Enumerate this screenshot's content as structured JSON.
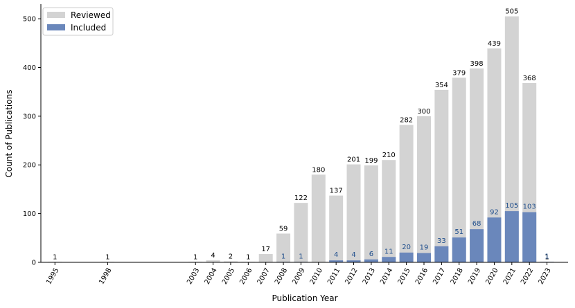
{
  "chart_data": {
    "type": "bar",
    "xlabel": "Publication Year",
    "ylabel": "Count of Publications",
    "ylim": [
      0,
      530
    ],
    "yticks": [
      0,
      100,
      200,
      300,
      400,
      500
    ],
    "x_range": [
      1994.2,
      2024.2
    ],
    "legend_position": "top-left",
    "grid": false,
    "x": [
      1995,
      1998,
      2003,
      2004,
      2005,
      2006,
      2007,
      2008,
      2009,
      2010,
      2011,
      2012,
      2013,
      2014,
      2015,
      2016,
      2017,
      2018,
      2019,
      2020,
      2021,
      2022,
      2023
    ],
    "tick_labels": [
      "1995",
      "1998",
      "2003",
      "2004",
      "2005",
      "2006",
      "2007",
      "2008",
      "2009",
      "2010",
      "2011",
      "2012",
      "2013",
      "2014",
      "2015",
      "2016",
      "2017",
      "2018",
      "2019",
      "2020",
      "2021",
      "2022",
      "2023"
    ],
    "series": [
      {
        "name": "Reviewed",
        "color": "#d3d3d3",
        "values": [
          1,
          1,
          1,
          4,
          2,
          1,
          17,
          59,
          122,
          180,
          137,
          201,
          199,
          210,
          282,
          300,
          354,
          379,
          398,
          439,
          505,
          368,
          1
        ],
        "labels": [
          "1",
          "1",
          "1",
          "4",
          "2",
          "1",
          "17",
          "59",
          "122",
          "180",
          "137",
          "201",
          "199",
          "210",
          "282",
          "300",
          "354",
          "379",
          "398",
          "439",
          "505",
          "368",
          "1"
        ]
      },
      {
        "name": "Included",
        "color": "#6a87bb",
        "values": [
          0,
          0,
          0,
          0,
          0,
          0,
          0,
          1,
          1,
          0,
          4,
          4,
          6,
          11,
          20,
          19,
          33,
          51,
          68,
          92,
          105,
          103,
          1
        ],
        "labels": [
          "",
          "",
          "",
          "",
          "",
          "",
          "",
          "1",
          "1",
          "",
          "4",
          "4",
          "6",
          "11",
          "20",
          "19",
          "33",
          "51",
          "68",
          "92",
          "105",
          "103",
          "1"
        ]
      }
    ]
  }
}
